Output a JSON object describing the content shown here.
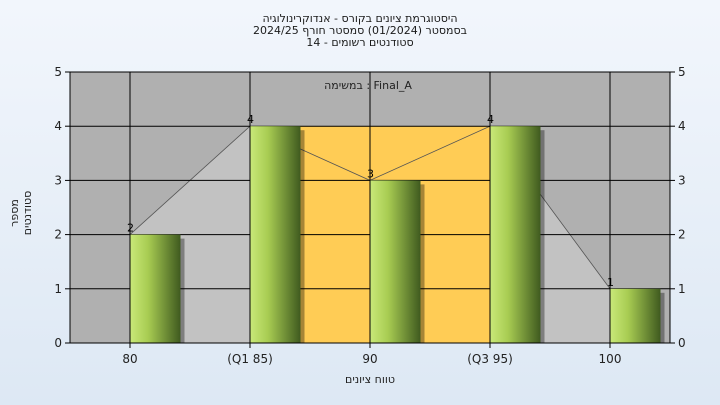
{
  "title_lines": [
    "היסטוגרמת ציונים בקורס - אנדוקרינולוגיה",
    "בסמסטר  (01/2024)  סמסטר חורף 2024/25",
    "סטודנטים רשומים - 14"
  ],
  "chart_data": {
    "type": "bar",
    "categories": [
      "80",
      "(Q1 85)",
      "90",
      "(Q3 95)",
      "100"
    ],
    "values": [
      2,
      4,
      3,
      4,
      1
    ],
    "xlabel": "טווח ציונים",
    "ylabel": "מספר סטודנטים",
    "ylim": [
      0,
      5
    ],
    "yticks": [
      "0",
      "1",
      "2",
      "3",
      "4",
      "5"
    ],
    "annotation": "במשימה : Final_A",
    "iqr_range": [
      "(Q1 85)",
      "(Q3 95)"
    ],
    "grid": true,
    "colors": {
      "plot_bg": "#b0b0b0",
      "iqr_band": "#ffcc55",
      "area": "#c2c2c2",
      "bar_light": "#c8e878",
      "bar_dark": "#3f5a1f"
    }
  }
}
